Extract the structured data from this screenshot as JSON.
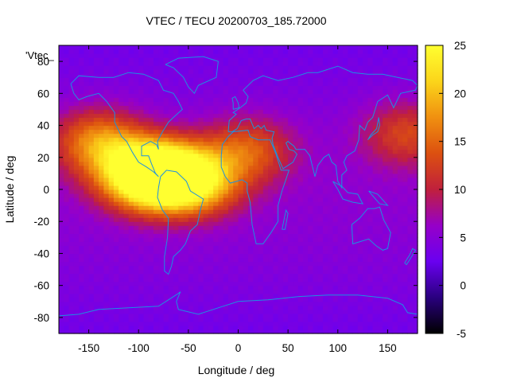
{
  "chart_data": {
    "type": "heatmap",
    "title": "VTEC / TECU 20200703_185.72000",
    "xlabel": "Longitude / deg",
    "ylabel": "Latitude / deg",
    "key_label": "'Vtec_",
    "xlim": [
      -180,
      180
    ],
    "ylim": [
      -90,
      90
    ],
    "colorbar_range": [
      -5,
      25
    ],
    "x_ticks": [
      -150,
      -100,
      -50,
      0,
      50,
      100,
      150
    ],
    "y_ticks": [
      -80,
      -60,
      -40,
      -20,
      0,
      20,
      40,
      60,
      80
    ],
    "colorbar_ticks": [
      -5,
      0,
      5,
      10,
      15,
      20,
      25
    ],
    "palette": [
      "#000000",
      "#2a007f",
      "#6a00f0",
      "#9600c8",
      "#c0203c",
      "#dc5010",
      "#f09010",
      "#fbd51a",
      "#ffff30"
    ],
    "coastline_color": "#1e90e0",
    "grid": false,
    "peaks": [
      {
        "lon": -95,
        "lat": 10,
        "vtec": 24
      },
      {
        "lon": -70,
        "lat": 8,
        "vtec": 21
      },
      {
        "lon": -140,
        "lat": 30,
        "vtec": 16
      },
      {
        "lon": -40,
        "lat": 5,
        "vtec": 16
      },
      {
        "lon": 10,
        "lat": 25,
        "vtec": 13
      },
      {
        "lon": 170,
        "lat": 35,
        "vtec": 12
      }
    ],
    "background_vtec": 4
  }
}
